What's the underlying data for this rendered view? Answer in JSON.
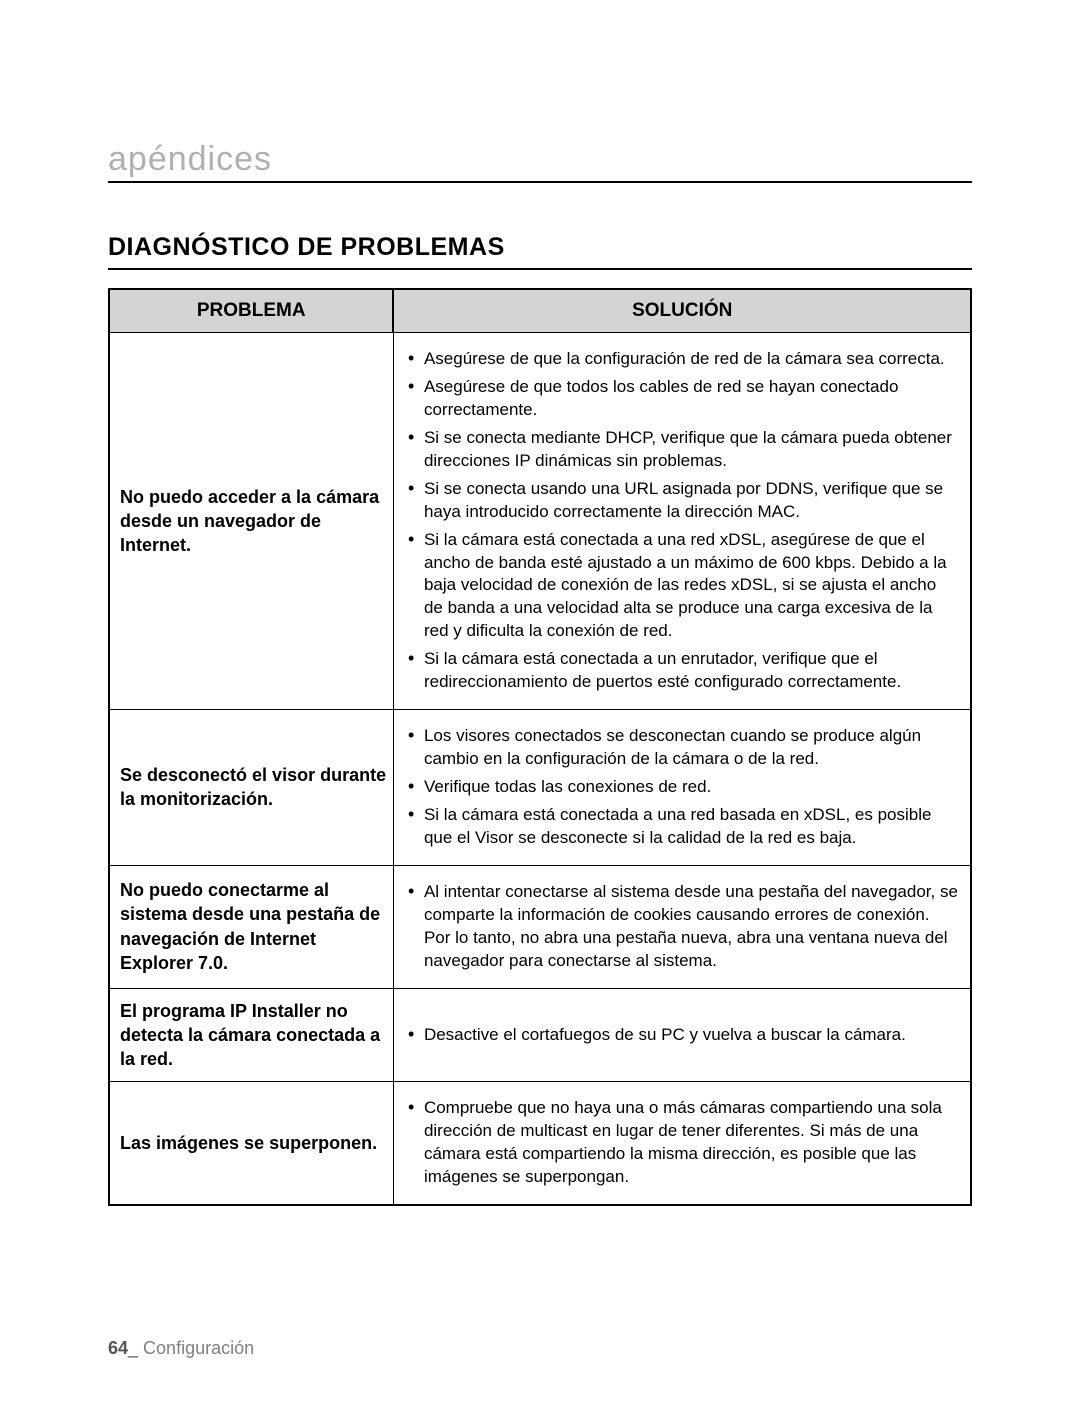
{
  "heading": "apéndices",
  "title": "DIAGNÓSTICO DE PROBLEMAS",
  "table": {
    "header_problem": "PROBLEMA",
    "header_solution": "SOLUCIÓN",
    "rows": [
      {
        "problem": "No puedo acceder a la cámara desde un navegador de Internet.",
        "solutions": [
          "Asegúrese de que la configuración de red de la cámara sea correcta.",
          "Asegúrese de que todos los cables de red se hayan conectado correctamente.",
          "Si se conecta mediante DHCP, verifique que la cámara pueda obtener direcciones IP dinámicas sin problemas.",
          "Si se conecta usando una URL asignada por DDNS, verifique que se haya introducido correctamente la dirección MAC.",
          "Si la cámara está conectada a una red xDSL, asegúrese de que el ancho de banda esté ajustado a un máximo de 600 kbps. Debido a la baja velocidad de conexión de las redes xDSL, si se ajusta el ancho de banda a una velocidad alta se produce una carga excesiva de la red y dificulta la conexión de red.",
          "Si la cámara está conectada a un enrutador, verifique que el redireccionamiento de puertos esté configurado correctamente."
        ]
      },
      {
        "problem": "Se desconectó el visor durante la monitorización.",
        "solutions": [
          "Los visores conectados se desconectan cuando se produce algún cambio en la configuración de la cámara o de la red.",
          "Verifique todas las conexiones de red.",
          "Si la cámara está conectada a una red basada en xDSL, es posible que el Visor se desconecte si la calidad de la red es baja."
        ]
      },
      {
        "problem": "No puedo conectarme al sistema desde una pestaña de navegación de Internet Explorer 7.0.",
        "solutions": [
          "Al intentar conectarse al sistema desde una pestaña del navegador, se comparte la información de cookies causando errores de conexión. Por lo tanto, no abra una pestaña nueva, abra una ventana nueva del navegador para conectarse al sistema."
        ]
      },
      {
        "problem": "El programa IP Installer no detecta la cámara conectada a la red.",
        "solutions": [
          "Desactive el cortafuegos de su PC y vuelva a buscar la cámara."
        ]
      },
      {
        "problem": "Las imágenes se superponen.",
        "solutions": [
          "Compruebe que no haya una o más cámaras compartiendo una sola dirección de multicast en lugar de tener diferentes. Si más de una cámara está compartiendo la misma dirección, es posible que las imágenes se superpongan."
        ]
      }
    ]
  },
  "footer": {
    "page_number": "64",
    "underscore": "_",
    "section_name": " Configuración"
  }
}
